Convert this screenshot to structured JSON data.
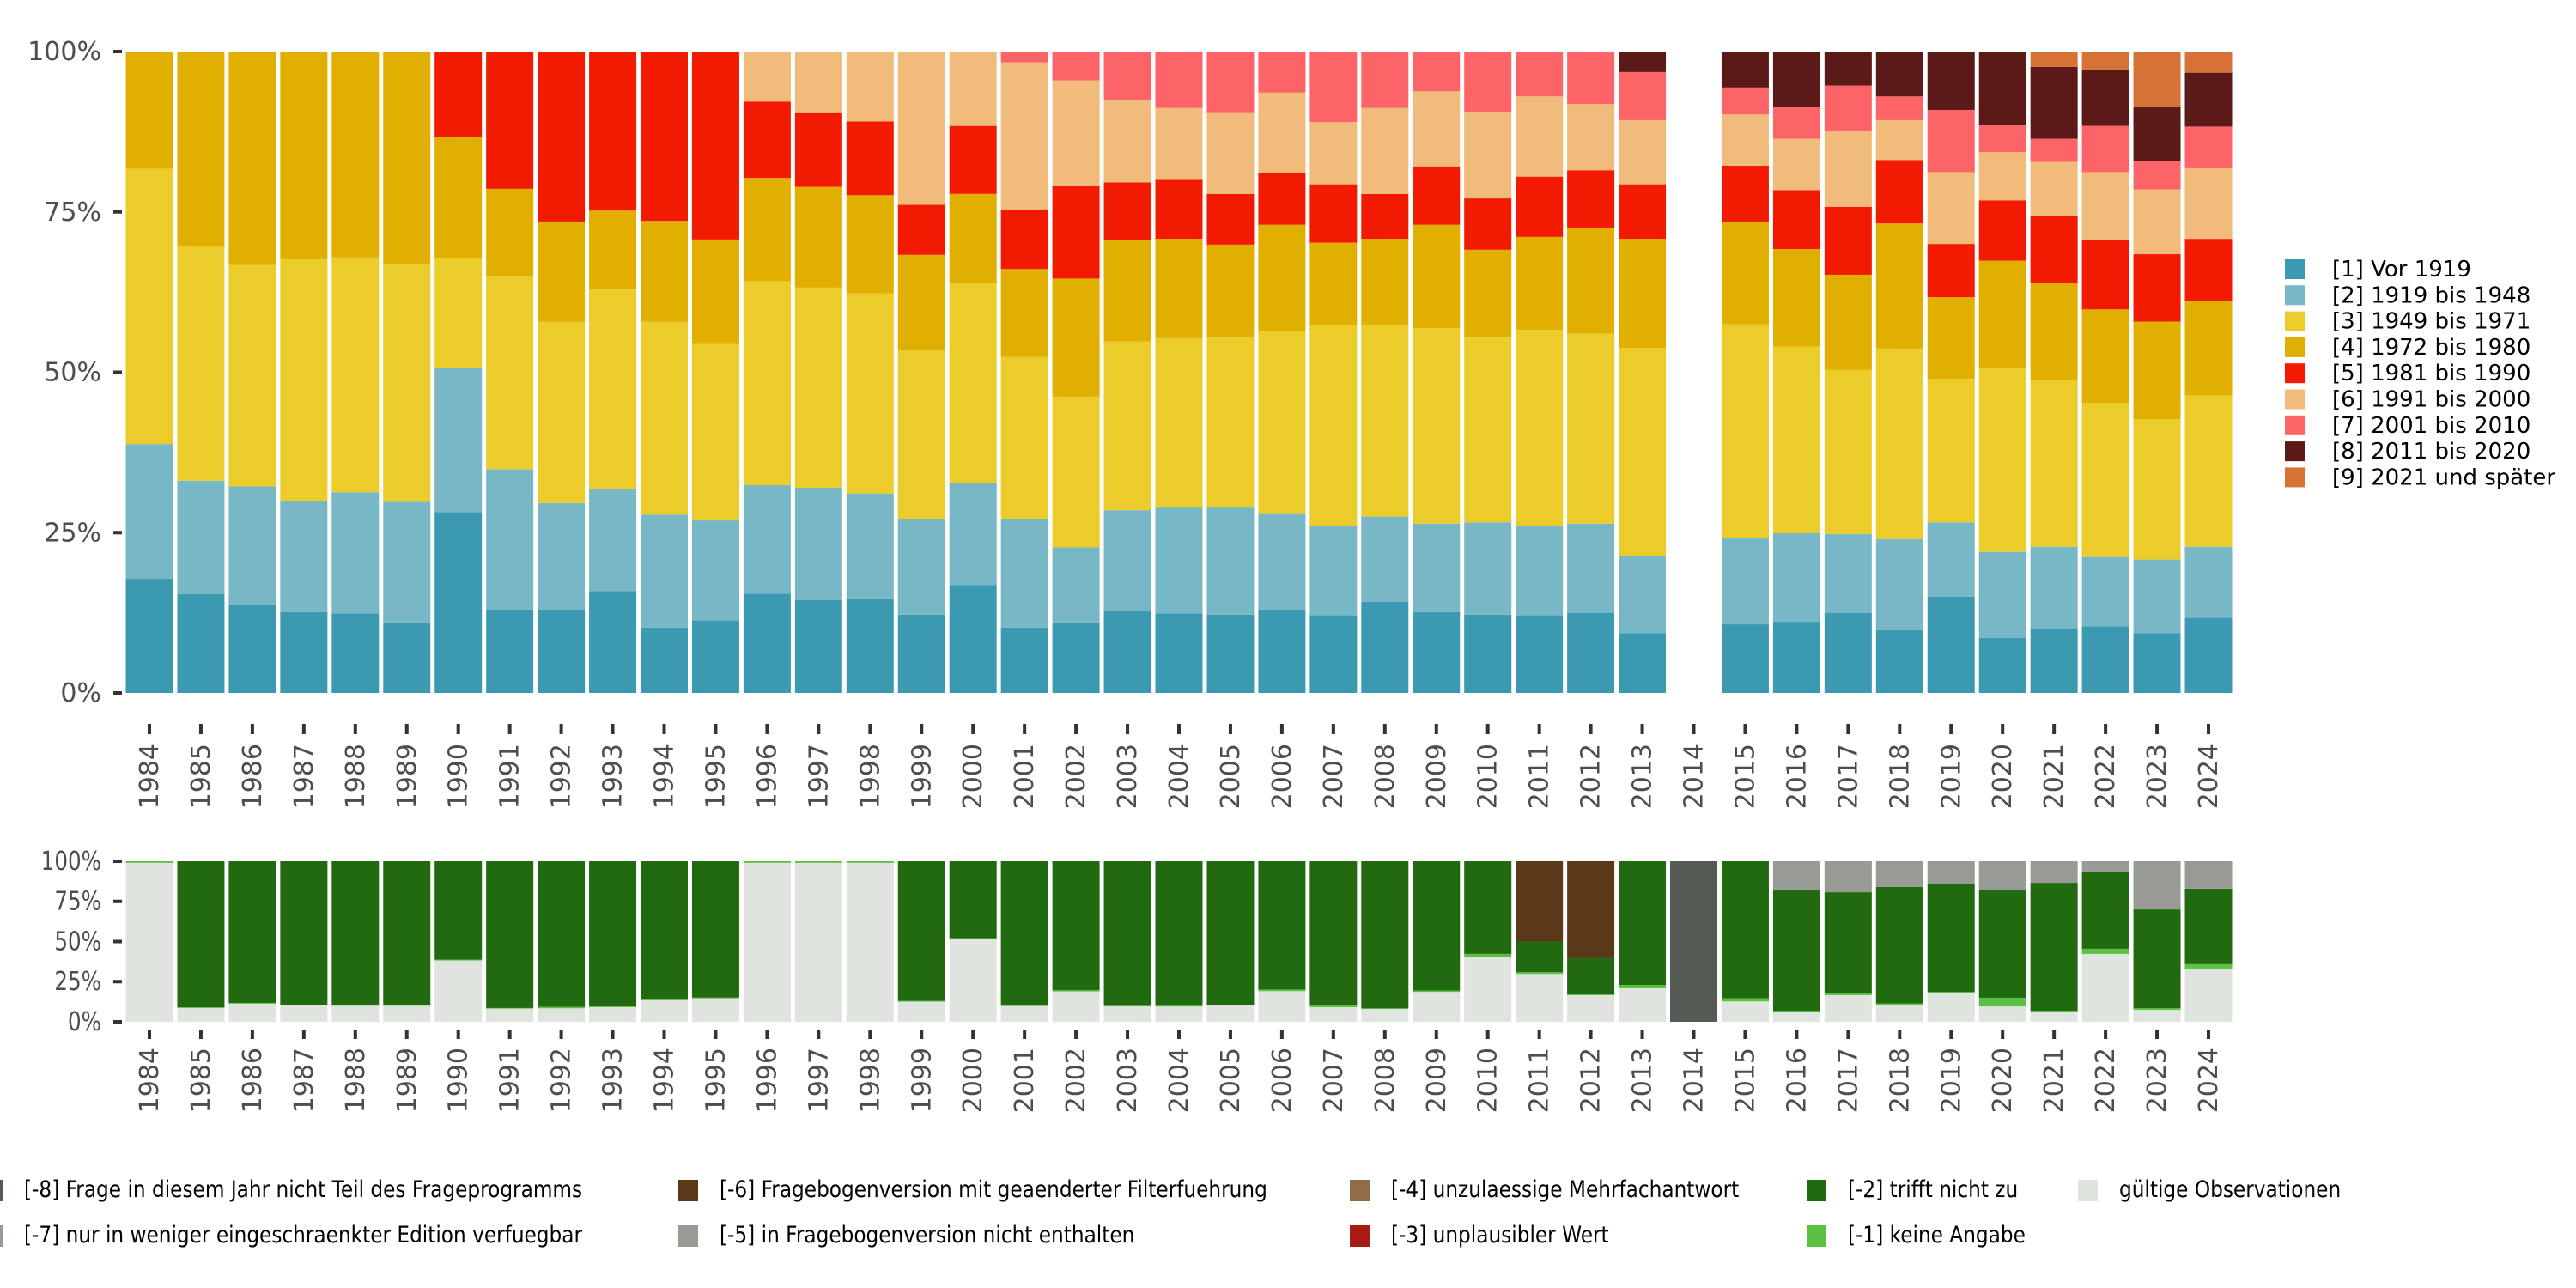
{
  "chart_data": [
    {
      "type": "bar",
      "stacked": true,
      "normalized": true,
      "title": "",
      "xlabel": "",
      "ylabel": "",
      "ylim": [
        0,
        100
      ],
      "yticks": [
        "0%",
        "25%",
        "50%",
        "75%",
        "100%"
      ],
      "ytick_values": [
        0,
        25,
        50,
        75,
        100
      ],
      "grid": false,
      "legend_position": "right",
      "categories": [
        "1984",
        "1985",
        "1986",
        "1987",
        "1988",
        "1989",
        "1990",
        "1991",
        "1992",
        "1993",
        "1994",
        "1995",
        "1996",
        "1997",
        "1998",
        "1999",
        "2000",
        "2001",
        "2002",
        "2003",
        "2004",
        "2005",
        "2006",
        "2007",
        "2008",
        "2009",
        "2010",
        "2011",
        "2012",
        "2013",
        "2014",
        "2015",
        "2016",
        "2017",
        "2018",
        "2019",
        "2020",
        "2021",
        "2022",
        "2023",
        "2024"
      ],
      "series": [
        {
          "name": "[1] Vor 1919",
          "color": "#3b9ab2",
          "values": [
            17.8,
            15.4,
            13.8,
            12.6,
            12.4,
            11.0,
            28.2,
            13.0,
            13.0,
            15.9,
            10.2,
            11.3,
            15.5,
            14.5,
            14.6,
            12.2,
            16.8,
            10.2,
            11.0,
            12.8,
            12.4,
            12.2,
            13.0,
            12.1,
            14.2,
            12.6,
            12.2,
            12.1,
            12.5,
            9.3,
            0,
            10.7,
            11.1,
            12.5,
            9.8,
            15.0,
            8.6,
            10.0,
            10.4,
            9.3,
            11.7
          ]
        },
        {
          "name": "[2] 1919 bis 1948",
          "color": "#78b7c5",
          "values": [
            21.0,
            17.7,
            18.4,
            17.4,
            18.9,
            18.8,
            22.4,
            21.9,
            16.6,
            15.9,
            17.6,
            15.6,
            16.9,
            17.5,
            16.5,
            14.9,
            16.0,
            16.9,
            11.7,
            15.7,
            16.5,
            16.7,
            14.9,
            14.0,
            13.3,
            13.8,
            14.4,
            14.0,
            13.9,
            12.1,
            0,
            13.4,
            13.8,
            12.3,
            14.2,
            11.6,
            13.4,
            12.8,
            10.8,
            11.5,
            11.1
          ]
        },
        {
          "name": "[3] 1949 bis 1971",
          "color": "#ebcc2a",
          "values": [
            42.9,
            36.6,
            34.5,
            37.6,
            36.6,
            37.1,
            17.2,
            30.1,
            28.3,
            31.1,
            30.1,
            27.5,
            31.8,
            31.2,
            31.2,
            26.3,
            31.1,
            25.3,
            23.5,
            26.3,
            26.4,
            26.5,
            28.5,
            31.2,
            29.8,
            30.5,
            28.8,
            30.5,
            29.6,
            32.4,
            0,
            33.4,
            29.1,
            25.6,
            29.7,
            22.4,
            28.7,
            25.9,
            24.0,
            21.9,
            23.6
          ]
        },
        {
          "name": "[4] 1972 bis 1980",
          "color": "#e1af00",
          "values": [
            18.3,
            30.3,
            33.3,
            32.4,
            32.1,
            33.1,
            18.9,
            13.6,
            15.6,
            12.3,
            15.7,
            16.3,
            16.1,
            15.7,
            15.3,
            14.9,
            13.9,
            13.7,
            18.4,
            15.8,
            15.5,
            14.5,
            16.6,
            12.9,
            13.5,
            16.1,
            13.7,
            14.5,
            16.5,
            17.0,
            0,
            15.9,
            15.2,
            14.8,
            19.5,
            12.7,
            16.7,
            15.2,
            14.6,
            15.2,
            14.7
          ]
        },
        {
          "name": "[5] 1981 bis 1990",
          "color": "#f21a00",
          "values": [
            0,
            0,
            0,
            0,
            0,
            0,
            13.3,
            21.4,
            26.5,
            24.8,
            26.4,
            29.3,
            11.9,
            11.5,
            11.5,
            7.8,
            10.6,
            9.3,
            14.4,
            9.0,
            9.2,
            7.9,
            8.1,
            9.1,
            7.0,
            9.1,
            8.0,
            9.4,
            9.0,
            8.5,
            0,
            8.8,
            9.2,
            10.6,
            9.9,
            8.3,
            9.4,
            10.5,
            10.8,
            10.5,
            9.7
          ]
        },
        {
          "name": "[6] 1991 bis 2000",
          "color": "#f1bb7b",
          "values": [
            0,
            0,
            0,
            0,
            0,
            0,
            0,
            0,
            0,
            0,
            0,
            0,
            7.8,
            9.6,
            10.9,
            23.9,
            11.6,
            22.9,
            16.5,
            12.8,
            11.2,
            12.6,
            12.5,
            9.7,
            13.4,
            11.7,
            13.4,
            12.5,
            10.3,
            10.0,
            0,
            8.0,
            8.0,
            11.8,
            6.2,
            11.2,
            7.5,
            8.4,
            10.6,
            10.1,
            11.0
          ]
        },
        {
          "name": "[7] 2001 bis 2010",
          "color": "#fd6467",
          "values": [
            0,
            0,
            0,
            0,
            0,
            0,
            0,
            0,
            0,
            0,
            0,
            0,
            0,
            0,
            0,
            0,
            0,
            1.7,
            4.5,
            7.6,
            8.8,
            9.6,
            6.4,
            11.0,
            8.8,
            6.2,
            9.5,
            7.0,
            8.2,
            7.5,
            0,
            4.2,
            4.9,
            7.1,
            3.7,
            9.7,
            4.3,
            3.6,
            7.2,
            4.4,
            6.5
          ]
        },
        {
          "name": "[8] 2011 bis 2020",
          "color": "#5b1a18",
          "values": [
            0,
            0,
            0,
            0,
            0,
            0,
            0,
            0,
            0,
            0,
            0,
            0,
            0,
            0,
            0,
            0,
            0,
            0,
            0,
            0,
            0,
            0,
            0,
            0,
            0,
            0,
            0,
            0,
            0,
            3.2,
            0,
            5.6,
            8.7,
            5.3,
            7.0,
            9.1,
            11.4,
            11.2,
            8.8,
            8.4,
            8.4
          ]
        },
        {
          "name": "[9] 2021 und später",
          "color": "#d67236",
          "values": [
            0,
            0,
            0,
            0,
            0,
            0,
            0,
            0,
            0,
            0,
            0,
            0,
            0,
            0,
            0,
            0,
            0,
            0,
            0,
            0,
            0,
            0,
            0,
            0,
            0,
            0,
            0,
            0,
            0,
            0,
            0,
            0,
            0,
            0,
            0,
            0,
            0,
            2.4,
            2.8,
            8.7,
            3.3
          ]
        }
      ]
    },
    {
      "type": "bar",
      "stacked": true,
      "normalized": true,
      "title": "",
      "xlabel": "",
      "ylabel": "",
      "ylim": [
        0,
        100
      ],
      "yticks": [
        "0%",
        "25%",
        "50%",
        "75%",
        "100%"
      ],
      "ytick_values": [
        0,
        25,
        50,
        75,
        100
      ],
      "grid": false,
      "legend_position": "bottom",
      "categories": [
        "1984",
        "1985",
        "1986",
        "1987",
        "1988",
        "1989",
        "1990",
        "1991",
        "1992",
        "1993",
        "1994",
        "1995",
        "1996",
        "1997",
        "1998",
        "1999",
        "2000",
        "2001",
        "2002",
        "2003",
        "2004",
        "2005",
        "2006",
        "2007",
        "2008",
        "2009",
        "2010",
        "2011",
        "2012",
        "2013",
        "2014",
        "2015",
        "2016",
        "2017",
        "2018",
        "2019",
        "2020",
        "2021",
        "2022",
        "2023",
        "2024"
      ],
      "series": [
        {
          "name": "gültige Observationen",
          "color": "#e0e4df",
          "values": [
            99,
            8.6,
            11.3,
            10.2,
            10.0,
            10.0,
            38.2,
            8.2,
            8.4,
            9.1,
            13.4,
            14.6,
            99,
            99,
            99,
            12.5,
            51.6,
            9.8,
            18.9,
            9.6,
            9.5,
            10.2,
            19.1,
            9.1,
            8.0,
            18.6,
            40.2,
            29.8,
            16.6,
            20.9,
            0,
            12.7,
            6.3,
            16.6,
            10.5,
            17.7,
            9.6,
            5.9,
            42.3,
            7.5,
            33.2
          ]
        },
        {
          "name": "[-1] keine Angabe",
          "color": "#5bbf42",
          "values": [
            1,
            0.4,
            0.5,
            0.4,
            0.3,
            0.3,
            0.5,
            0.4,
            0.9,
            0.5,
            0.5,
            0.5,
            1,
            1,
            1,
            0.5,
            0.5,
            0.4,
            0.9,
            0.4,
            0.5,
            0.5,
            1.0,
            1.0,
            0.4,
            0.9,
            2.1,
            1.1,
            0.5,
            2.1,
            0,
            2.0,
            0.5,
            1.0,
            1.0,
            1.0,
            5.4,
            1.0,
            3.2,
            1.0,
            2.7
          ]
        },
        {
          "name": "[-2] trifft nicht zu",
          "color": "#216a10",
          "values": [
            0,
            91.0,
            88.2,
            89.4,
            89.7,
            89.7,
            61.3,
            91.4,
            90.7,
            90.4,
            86.1,
            84.9,
            0,
            0,
            0,
            87.0,
            47.9,
            89.8,
            80.2,
            90.0,
            90.0,
            89.3,
            79.9,
            89.9,
            91.6,
            80.5,
            57.7,
            19.1,
            22.5,
            77.0,
            0,
            85.3,
            75.0,
            63.1,
            72.5,
            67.4,
            67.3,
            79.7,
            48.1,
            61.5,
            47.1
          ]
        },
        {
          "name": "[-3] unplausibler Wert",
          "color": "#a81b12",
          "values": [
            0,
            0,
            0,
            0,
            0,
            0,
            0,
            0,
            0,
            0,
            0,
            0,
            0,
            0,
            0,
            0,
            0,
            0,
            0,
            0,
            0,
            0,
            0,
            0,
            0,
            0,
            0,
            0,
            0,
            0,
            0,
            0,
            0,
            0,
            0,
            0,
            0,
            0,
            0,
            0,
            0
          ]
        },
        {
          "name": "[-4] unzulaessige Mehrfachantwort",
          "color": "#8f6b47",
          "values": [
            0,
            0,
            0,
            0,
            0,
            0,
            0,
            0,
            0,
            0,
            0,
            0,
            0,
            0,
            0,
            0,
            0,
            0,
            0,
            0,
            0,
            0,
            0,
            0,
            0,
            0,
            0,
            0,
            0,
            0,
            0,
            0,
            0,
            0,
            0,
            0,
            0,
            0,
            0,
            0,
            0
          ]
        },
        {
          "name": "[-5] in Fragebogenversion nicht enthalten",
          "color": "#989b94",
          "values": [
            0,
            0,
            0,
            0,
            0,
            0,
            0,
            0,
            0,
            0,
            0,
            0,
            0,
            0,
            0,
            0,
            0,
            0,
            0,
            0,
            0,
            0,
            0,
            0,
            0,
            0,
            0,
            0,
            0,
            0,
            0,
            0,
            18.2,
            19.3,
            16.0,
            13.9,
            17.7,
            13.4,
            6.4,
            30.0,
            17.0
          ]
        },
        {
          "name": "[-6] Fragebogenversion mit geaenderter Filterfuehrung",
          "color": "#5a3918",
          "values": [
            0,
            0,
            0,
            0,
            0,
            0,
            0,
            0,
            0,
            0,
            0,
            0,
            0,
            0,
            0,
            0,
            0,
            0,
            0,
            0,
            0,
            0,
            0,
            0,
            0,
            0,
            0,
            50.0,
            60.4,
            0,
            0,
            0,
            0,
            0,
            0,
            0,
            0,
            0,
            0,
            0,
            0
          ]
        },
        {
          "name": "[-7] nur in weniger eingeschraenkter Edition verfuegbar",
          "color": "#989b94",
          "values": [
            0,
            0,
            0,
            0,
            0,
            0,
            0,
            0,
            0,
            0,
            0,
            0,
            0,
            0,
            0,
            0,
            0,
            0,
            0,
            0,
            0,
            0,
            0,
            0,
            0,
            0,
            0,
            0,
            0,
            0,
            0,
            0,
            0,
            0,
            0,
            0,
            0,
            0,
            0,
            0,
            0
          ]
        },
        {
          "name": "[-8] Frage in diesem Jahr nicht Teil des Frageprogramms",
          "color": "#545b55",
          "values": [
            0,
            0,
            0,
            0,
            0,
            0,
            0,
            0,
            0,
            0,
            0,
            0,
            0,
            0,
            0,
            0,
            0,
            0,
            0,
            0,
            0,
            0,
            0,
            0,
            0,
            0,
            0,
            0,
            0,
            0,
            100,
            0,
            0,
            0,
            0,
            0,
            0,
            0,
            0,
            0,
            0
          ]
        }
      ]
    }
  ],
  "legend_top": {
    "items": [
      {
        "label": "[1] Vor 1919",
        "color": "#3b9ab2"
      },
      {
        "label": "[2] 1919 bis 1948",
        "color": "#78b7c5"
      },
      {
        "label": "[3] 1949 bis 1971",
        "color": "#ebcc2a"
      },
      {
        "label": "[4] 1972 bis 1980",
        "color": "#e1af00"
      },
      {
        "label": "[5] 1981 bis 1990",
        "color": "#f21a00"
      },
      {
        "label": "[6] 1991 bis 2000",
        "color": "#f1bb7b"
      },
      {
        "label": "[7] 2001 bis 2010",
        "color": "#fd6467"
      },
      {
        "label": "[8] 2011 bis 2020",
        "color": "#5b1a18"
      },
      {
        "label": "[9] 2021 und später",
        "color": "#d67236"
      }
    ]
  },
  "legend_bottom": {
    "items": [
      {
        "label": "[-8] Frage in diesem Jahr nicht Teil des Frageprogramms",
        "color": "#545b55"
      },
      {
        "label": "[-7] nur in weniger eingeschraenkter Edition verfuegbar",
        "color": "#989b94"
      },
      {
        "label": "[-6] Fragebogenversion mit geaenderter Filterfuehrung",
        "color": "#5a3918"
      },
      {
        "label": "[-5] in Fragebogenversion nicht enthalten",
        "color": "#989b94"
      },
      {
        "label": "[-4] unzulaessige Mehrfachantwort",
        "color": "#8f6b47"
      },
      {
        "label": "[-3] unplausibler Wert",
        "color": "#a81b12"
      },
      {
        "label": "[-2] trifft nicht zu",
        "color": "#216a10"
      },
      {
        "label": "[-1] keine Angabe",
        "color": "#5bbf42"
      },
      {
        "label": "gültige Observationen",
        "color": "#e0e4df"
      }
    ]
  }
}
